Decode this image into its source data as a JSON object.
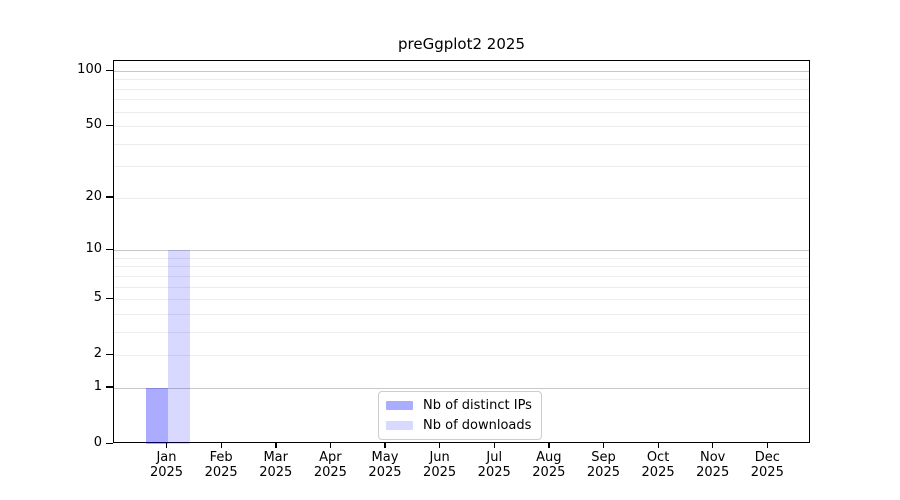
{
  "chart_data": {
    "type": "bar",
    "title": "preGgplot2 2025",
    "x": {
      "months": [
        "Jan",
        "Feb",
        "Mar",
        "Apr",
        "May",
        "Jun",
        "Jul",
        "Aug",
        "Sep",
        "Oct",
        "Nov",
        "Dec"
      ],
      "year": "2025"
    },
    "series": [
      {
        "name": "Nb of distinct IPs",
        "color": "rgba(0,0,255,0.33)",
        "values": [
          1,
          0,
          0,
          0,
          0,
          0,
          0,
          0,
          0,
          0,
          0,
          0
        ]
      },
      {
        "name": "Nb of downloads",
        "color": "rgba(0,0,255,0.15)",
        "values": [
          10,
          0,
          0,
          0,
          0,
          0,
          0,
          0,
          0,
          0,
          0,
          0
        ]
      }
    ],
    "yscale": "log1p",
    "ylim": [
      0,
      113
    ],
    "yticks": [
      0,
      1,
      2,
      5,
      10,
      20,
      50,
      100
    ],
    "grid": {
      "major_values": [
        1,
        10,
        100
      ],
      "minor_values": [
        2,
        3,
        4,
        5,
        6,
        7,
        8,
        9,
        20,
        30,
        40,
        50,
        60,
        70,
        80,
        90
      ],
      "major_color": "#c8c8c8",
      "minor_color": "#ededed"
    },
    "legend": {
      "position": "lower center",
      "entries": [
        "Nb of distinct IPs",
        "Nb of downloads"
      ]
    },
    "spine_color": "#000000",
    "background": "#ffffff"
  }
}
